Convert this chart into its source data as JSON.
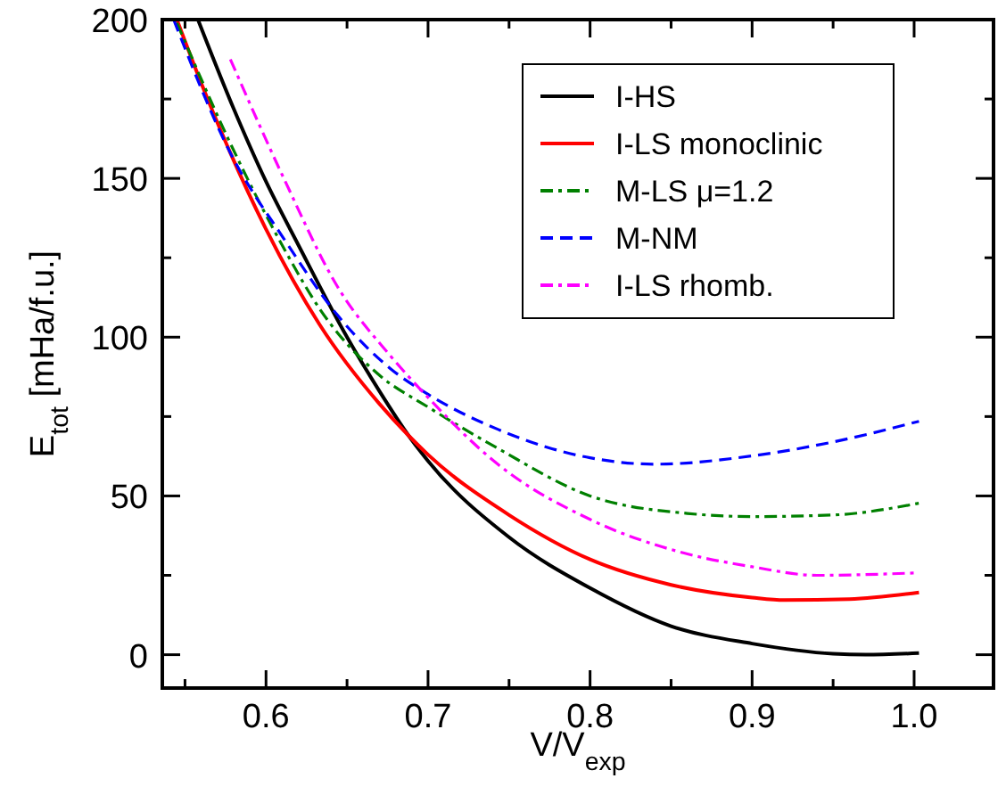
{
  "chart_data": {
    "type": "line",
    "xlabel": "V/V$_{exp}$",
    "ylabel": "E$_{tot}$ [mHa/f.u.]",
    "xlim": [
      0.536,
      1.049
    ],
    "ylim": [
      -10.5,
      200
    ],
    "xticks": [
      {
        "value": 0.55,
        "label": null
      },
      0.6,
      {
        "value": 0.65,
        "label": null
      },
      0.7,
      {
        "value": 0.75,
        "label": null
      },
      0.8,
      {
        "value": 0.85,
        "label": null
      },
      0.9,
      {
        "value": 0.95,
        "label": null
      },
      {
        "value": 1.0,
        "label": "1.0"
      }
    ],
    "yticks": [
      0,
      {
        "value": 25,
        "label": null
      },
      50,
      {
        "value": 75,
        "label": null
      },
      100,
      {
        "value": 125,
        "label": null
      },
      150,
      {
        "value": 175,
        "label": null
      },
      200
    ],
    "grid": false,
    "legend": "top right",
    "marker": "none",
    "series": [
      {
        "name": "I-HS",
        "color": "#000000",
        "line_style": "solid",
        "x": [
          0.558,
          0.58,
          0.6,
          0.62,
          0.65,
          0.67,
          0.688,
          0.7,
          0.75,
          0.8,
          0.85,
          0.9,
          0.95,
          0.97,
          1.003
        ],
        "values": [
          200,
          172,
          149,
          129,
          100,
          83,
          69,
          61,
          37,
          21,
          9,
          3.5,
          0.3,
          0,
          0.5
        ]
      },
      {
        "name": "I-LS monoclinic",
        "color": "#ff0000",
        "line_style": "solid",
        "x": [
          0.545,
          0.56,
          0.578,
          0.6,
          0.633,
          0.67,
          0.688,
          0.7,
          0.75,
          0.8,
          0.85,
          0.9,
          0.92,
          0.96,
          1.003
        ],
        "values": [
          200,
          180,
          158,
          134,
          104,
          79,
          69,
          63,
          44,
          30,
          22,
          18,
          17.2,
          17.5,
          19.6
        ]
      },
      {
        "name": "M-LS μ=1.2",
        "color": "#008000",
        "line_style": "dashdot",
        "x": [
          0.545,
          0.578,
          0.611,
          0.633,
          0.67,
          0.7,
          0.743,
          0.8,
          0.86,
          0.9,
          0.95,
          1.003
        ],
        "values": [
          199,
          161,
          128,
          109,
          88,
          78,
          65,
          50,
          44.5,
          43.5,
          44,
          47.7
        ]
      },
      {
        "name": "M-NM",
        "color": "#0000ff",
        "line_style": "dashed",
        "x": [
          0.543,
          0.578,
          0.611,
          0.644,
          0.677,
          0.7,
          0.743,
          0.8,
          0.84,
          0.9,
          0.95,
          1.003
        ],
        "values": [
          200,
          158,
          131,
          107,
          90,
          82,
          71,
          62,
          60,
          62.6,
          67,
          73.5
        ]
      },
      {
        "name": "I-LS rhomb.",
        "color": "#ff00ff",
        "line_style": "dashdot",
        "x": [
          0.578,
          0.611,
          0.644,
          0.677,
          0.7,
          0.743,
          0.8,
          0.858,
          0.9,
          0.94,
          1.003
        ],
        "values": [
          187.5,
          150,
          116,
          94,
          81,
          60,
          42.6,
          32,
          27.7,
          25,
          25.8
        ]
      }
    ]
  }
}
